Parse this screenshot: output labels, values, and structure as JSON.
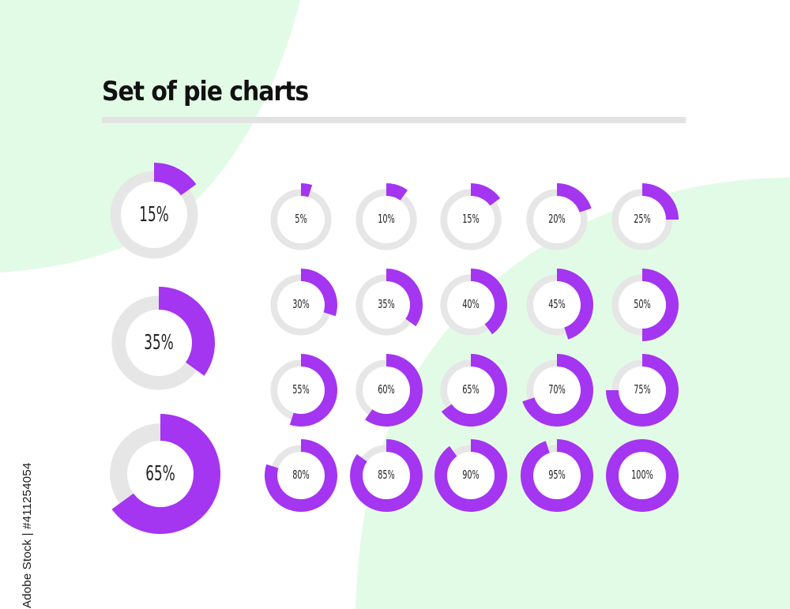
{
  "title": "Set of pie charts",
  "stock_id": "Adobe Stock | #411254054",
  "colors": {
    "accent": "#a435f0",
    "track": "#e6e6e6",
    "hole": "#ffffff",
    "background_blob": "#e2fbe6",
    "divider": "#e3e3e3"
  },
  "chart_data": [
    {
      "type": "pie",
      "variant": "donut",
      "group": "large",
      "values": [
        15
      ],
      "label": "15%"
    },
    {
      "type": "pie",
      "variant": "donut",
      "group": "large",
      "values": [
        35
      ],
      "label": "35%"
    },
    {
      "type": "pie",
      "variant": "donut",
      "group": "large",
      "values": [
        65
      ],
      "label": "65%"
    },
    {
      "type": "pie",
      "variant": "donut",
      "group": "grid",
      "values": [
        5
      ],
      "label": "5%"
    },
    {
      "type": "pie",
      "variant": "donut",
      "group": "grid",
      "values": [
        10
      ],
      "label": "10%"
    },
    {
      "type": "pie",
      "variant": "donut",
      "group": "grid",
      "values": [
        15
      ],
      "label": "15%"
    },
    {
      "type": "pie",
      "variant": "donut",
      "group": "grid",
      "values": [
        20
      ],
      "label": "20%"
    },
    {
      "type": "pie",
      "variant": "donut",
      "group": "grid",
      "values": [
        25
      ],
      "label": "25%"
    },
    {
      "type": "pie",
      "variant": "donut",
      "group": "grid",
      "values": [
        30
      ],
      "label": "30%"
    },
    {
      "type": "pie",
      "variant": "donut",
      "group": "grid",
      "values": [
        35
      ],
      "label": "35%"
    },
    {
      "type": "pie",
      "variant": "donut",
      "group": "grid",
      "values": [
        40
      ],
      "label": "40%"
    },
    {
      "type": "pie",
      "variant": "donut",
      "group": "grid",
      "values": [
        45
      ],
      "label": "45%"
    },
    {
      "type": "pie",
      "variant": "donut",
      "group": "grid",
      "values": [
        50
      ],
      "label": "50%"
    },
    {
      "type": "pie",
      "variant": "donut",
      "group": "grid",
      "values": [
        55
      ],
      "label": "55%"
    },
    {
      "type": "pie",
      "variant": "donut",
      "group": "grid",
      "values": [
        60
      ],
      "label": "60%"
    },
    {
      "type": "pie",
      "variant": "donut",
      "group": "grid",
      "values": [
        65
      ],
      "label": "65%"
    },
    {
      "type": "pie",
      "variant": "donut",
      "group": "grid",
      "values": [
        70
      ],
      "label": "70%"
    },
    {
      "type": "pie",
      "variant": "donut",
      "group": "grid",
      "values": [
        75
      ],
      "label": "75%"
    },
    {
      "type": "pie",
      "variant": "donut",
      "group": "grid",
      "values": [
        80
      ],
      "label": "80%"
    },
    {
      "type": "pie",
      "variant": "donut",
      "group": "grid",
      "values": [
        85
      ],
      "label": "85%"
    },
    {
      "type": "pie",
      "variant": "donut",
      "group": "grid",
      "values": [
        90
      ],
      "label": "90%"
    },
    {
      "type": "pie",
      "variant": "donut",
      "group": "grid",
      "values": [
        95
      ],
      "label": "95%"
    },
    {
      "type": "pie",
      "variant": "donut",
      "group": "grid",
      "values": [
        100
      ],
      "label": "100%"
    }
  ]
}
